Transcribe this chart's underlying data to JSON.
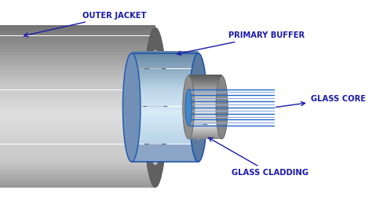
{
  "bg_color": "#ffffff",
  "label_color": "#1a1aaa",
  "label_fontsize": 7.2,
  "label_fontweight": "bold",
  "labels": {
    "outer_jacket": "OUTER JACKET",
    "primary_buffer": "PRIMARY BUFFER",
    "glass_core": "GLASS CORE",
    "glass_cladding": "GLASS CLADDING"
  },
  "oj_body_color": "#c8c8c8",
  "oj_highlight_color": "#e2e2e2",
  "oj_shadow_color": "#a0a0a0",
  "oj_end_color": "#808080",
  "pb_body_color": "#b0c8e0",
  "pb_highlight_color": "#d8eaf8",
  "pb_edge_color": "#2255aa",
  "gc_body_color": "#b8b8b8",
  "gc_end_color": "#989898",
  "core_line_color": "#2266cc",
  "core_line_color2": "#88aadd"
}
